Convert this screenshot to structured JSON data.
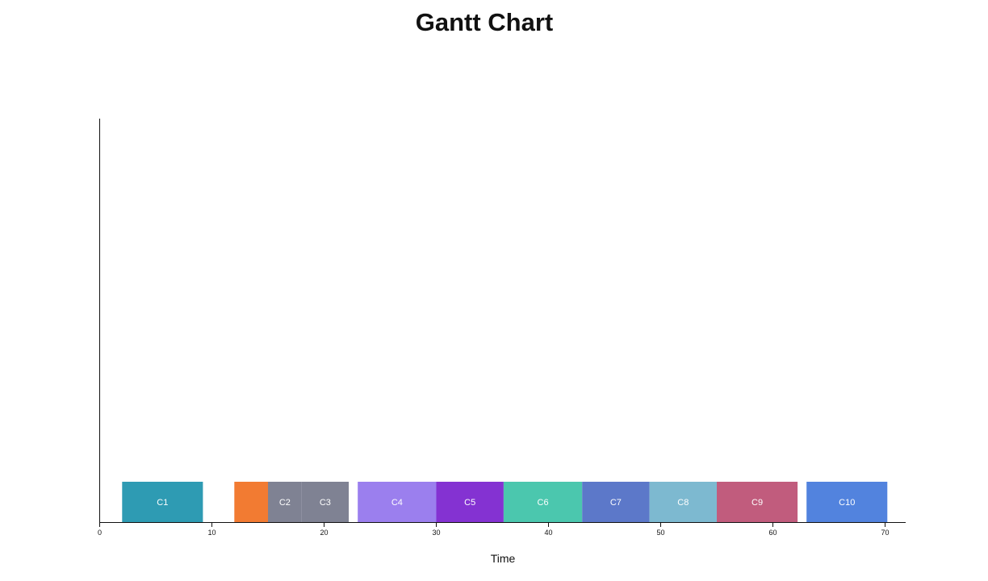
{
  "chart_data": {
    "type": "gantt",
    "title": "Gantt Chart",
    "xlabel": "Time",
    "ylabel": "",
    "xlim": [
      0,
      70
    ],
    "x_ticks": [
      "0",
      "10",
      "20",
      "30",
      "40",
      "50",
      "60",
      "70"
    ],
    "grid": false,
    "tasks": [
      {
        "label": "C1",
        "start": 2,
        "end": 9.2,
        "color": "#2E9BB3"
      },
      {
        "label": "",
        "start": 12,
        "end": 15,
        "color": "#F27B32"
      },
      {
        "label": "C2",
        "start": 15,
        "end": 18,
        "color": "#7F8293"
      },
      {
        "label": "C3",
        "start": 18,
        "end": 22.2,
        "color": "#7F8293"
      },
      {
        "label": "C4",
        "start": 23,
        "end": 30,
        "color": "#9B7FEE"
      },
      {
        "label": "C5",
        "start": 30,
        "end": 36,
        "color": "#8432D2"
      },
      {
        "label": "C6",
        "start": 36,
        "end": 43,
        "color": "#4BC7AE"
      },
      {
        "label": "C7",
        "start": 43,
        "end": 49,
        "color": "#5C78C9"
      },
      {
        "label": "C8",
        "start": 49,
        "end": 55,
        "color": "#7DB9D0"
      },
      {
        "label": "C9",
        "start": 55,
        "end": 62.2,
        "color": "#C15C7D"
      },
      {
        "label": "C10",
        "start": 63,
        "end": 70.2,
        "color": "#5283DE"
      }
    ]
  }
}
